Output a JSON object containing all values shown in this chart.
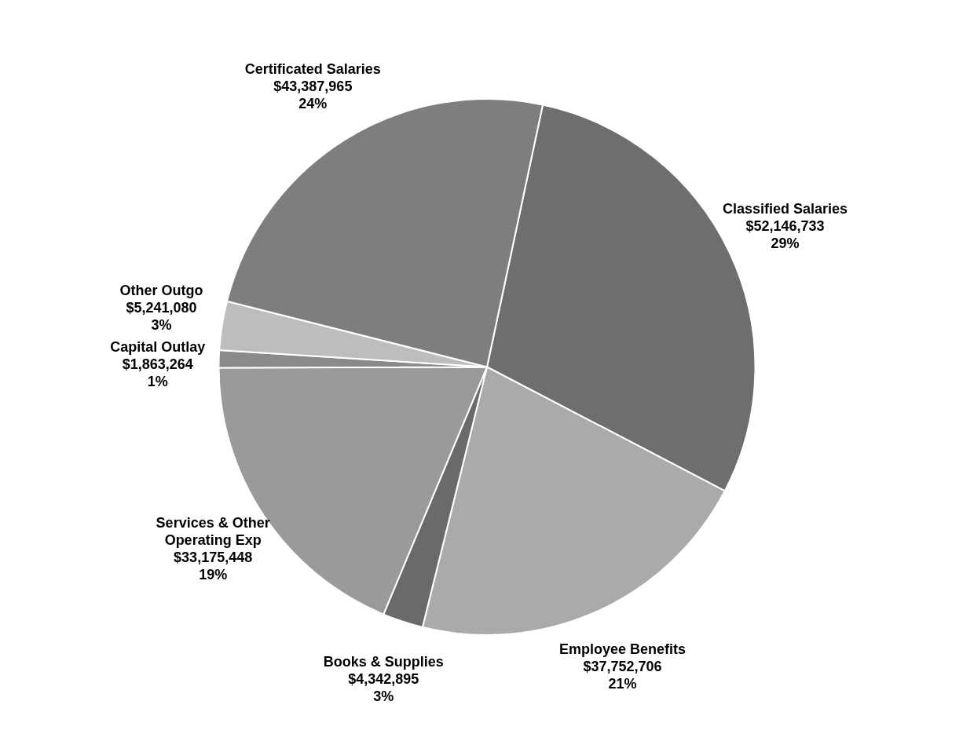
{
  "chart_data": {
    "type": "pie",
    "categories": [
      "Classified Salaries",
      "Employee Benefits",
      "Books & Supplies",
      "Services & Other Operating Exp",
      "Capital Outlay",
      "Other Outgo",
      "Certificated Salaries"
    ],
    "values": [
      52146733,
      37752706,
      4342895,
      33175448,
      1863264,
      5241080,
      43387965
    ],
    "colors": [
      "#6e6e6e",
      "#aaaaaa",
      "#6a6a6a",
      "#9a9a9a",
      "#8a8a8a",
      "#bdbdbd",
      "#7e7e7e"
    ],
    "value_labels": [
      "$52,146,733\n29%",
      "$37,752,706\n21%",
      "$4,342,895\n3%",
      "$33,175,448\n19%",
      "$1,863,264\n1%",
      "$5,241,080\n3%",
      "$43,387,965\n24%"
    ],
    "legend": false
  }
}
